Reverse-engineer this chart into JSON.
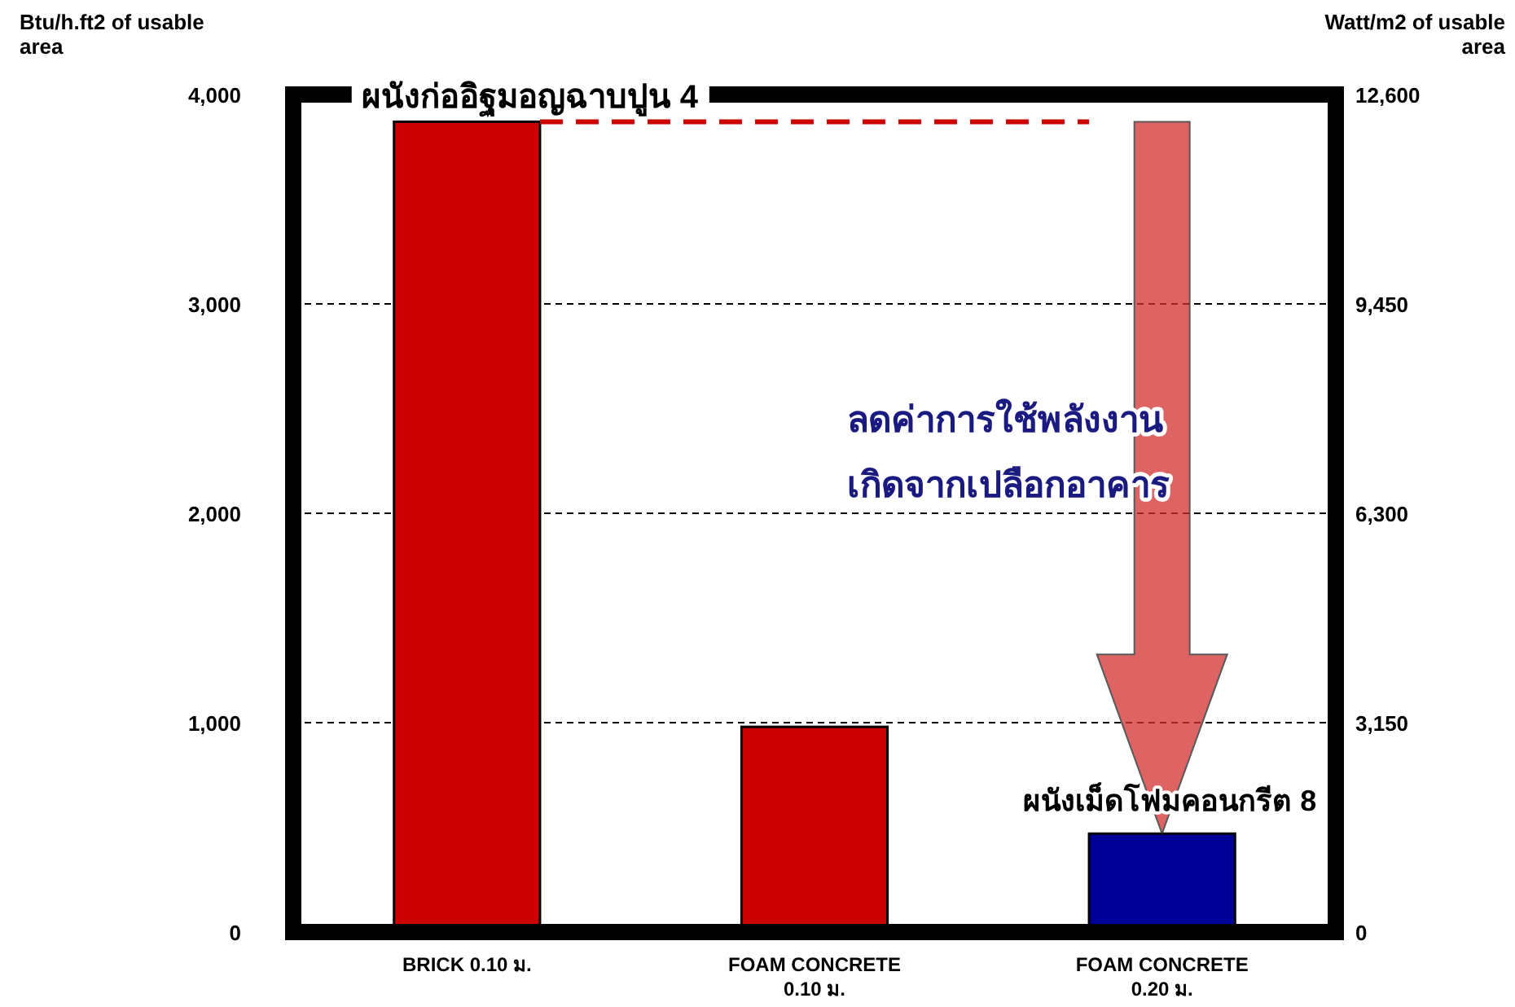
{
  "chart_data": {
    "type": "bar",
    "categories": [
      "BRICK 0.10 ม.",
      "FOAM CONCRETE 0.10 ม.",
      "FOAM CONCRETE 0.20 ม."
    ],
    "values": [
      3870,
      980,
      470
    ],
    "colors": [
      "#cc0000",
      "#cc0000",
      "#000099"
    ],
    "ylabel": "Btu/h.ft2 of usable area",
    "y2label": "Watt/m2 of usable area",
    "ylim": [
      0,
      4000
    ],
    "yticks": [
      {
        "value": 0,
        "label": "0"
      },
      {
        "value": 1000,
        "label": "1,000"
      },
      {
        "value": 2000,
        "label": "2,000"
      },
      {
        "value": 3000,
        "label": "3,000"
      },
      {
        "value": 4000,
        "label": "4,000"
      }
    ],
    "y2lim": [
      0,
      12600
    ],
    "y2ticks": [
      {
        "value": 0,
        "label": "0"
      },
      {
        "value": 3150,
        "label": "3,150"
      },
      {
        "value": 6300,
        "label": "6,300"
      },
      {
        "value": 9450,
        "label": "9,450"
      },
      {
        "value": 12600,
        "label": "12,600"
      }
    ],
    "grid": "y",
    "ref_lines": [
      {
        "axis": "y",
        "value": 3870,
        "color": "#cc0000",
        "line_style": "dashed"
      }
    ],
    "annotations": [
      "ผนังก่ออิฐมอญฉาบปูน 4",
      {
        "text": "ผนังเม็ดโฟมคอนกรีต 8",
        "x": "FOAM CONCRETE 0.20 ม.",
        "y": 470
      },
      "ลดค่าการใช้พลังงาน",
      "เกิดจากเปลือกอาคาร"
    ]
  }
}
